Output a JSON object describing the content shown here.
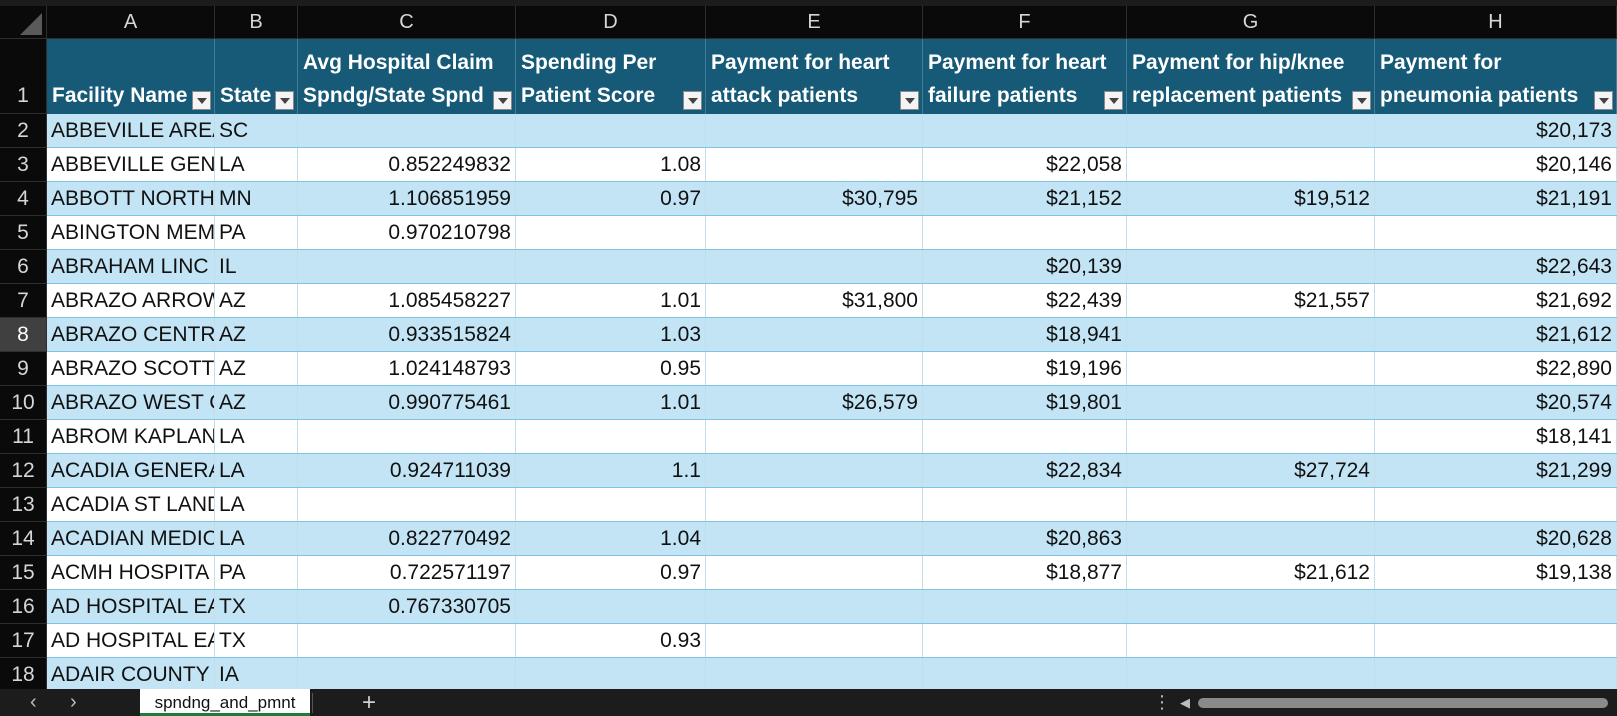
{
  "sheet": {
    "columns": [
      "A",
      "B",
      "C",
      "D",
      "E",
      "F",
      "G",
      "H"
    ],
    "header_row_number": "1",
    "headers": [
      "Facility Name",
      "State",
      "Avg Hospital Claim Spndg/State Spnd",
      "Spending Per Patient Score",
      "Payment for heart attack patients",
      "Payment for heart failure patients",
      "Payment for hip/knee replacement patients",
      "Payment for pneumonia patients"
    ],
    "header_lines": [
      [
        "",
        "Facility Name"
      ],
      [
        "",
        "State"
      ],
      [
        "Avg Hospital Claim",
        "Spndg/State Spnd"
      ],
      [
        "Spending Per",
        "Patient Score"
      ],
      [
        "Payment for heart",
        "attack patients"
      ],
      [
        "Payment for heart",
        "failure patients"
      ],
      [
        "Payment for hip/knee",
        "replacement patients"
      ],
      [
        "Payment for",
        "pneumonia patients"
      ]
    ],
    "rows": [
      {
        "num": "2",
        "cells": [
          "ABBEVILLE AREA",
          "SC",
          "",
          "",
          "",
          "",
          "",
          "$20,173"
        ]
      },
      {
        "num": "3",
        "cells": [
          "ABBEVILLE GEN",
          "LA",
          "0.852249832",
          "1.08",
          "",
          "$22,058",
          "",
          "$20,146"
        ]
      },
      {
        "num": "4",
        "cells": [
          "ABBOTT NORTH",
          "MN",
          "1.106851959",
          "0.97",
          "$30,795",
          "$21,152",
          "$19,512",
          "$21,191"
        ]
      },
      {
        "num": "5",
        "cells": [
          "ABINGTON MEM",
          "PA",
          "0.970210798",
          "",
          "",
          "",
          "",
          ""
        ]
      },
      {
        "num": "6",
        "cells": [
          "ABRAHAM LINC",
          "IL",
          "",
          "",
          "",
          "$20,139",
          "",
          "$22,643"
        ]
      },
      {
        "num": "7",
        "cells": [
          "ABRAZO ARROW",
          "AZ",
          "1.085458227",
          "1.01",
          "$31,800",
          "$22,439",
          "$21,557",
          "$21,692"
        ]
      },
      {
        "num": "8",
        "cells": [
          "ABRAZO CENTR",
          "AZ",
          "0.933515824",
          "1.03",
          "",
          "$18,941",
          "",
          "$21,612"
        ]
      },
      {
        "num": "9",
        "cells": [
          "ABRAZO SCOTTS",
          "AZ",
          "1.024148793",
          "0.95",
          "",
          "$19,196",
          "",
          "$22,890"
        ]
      },
      {
        "num": "10",
        "cells": [
          "ABRAZO WEST C",
          "AZ",
          "0.990775461",
          "1.01",
          "$26,579",
          "$19,801",
          "",
          "$20,574"
        ]
      },
      {
        "num": "11",
        "cells": [
          "ABROM KAPLAN",
          "LA",
          "",
          "",
          "",
          "",
          "",
          "$18,141"
        ]
      },
      {
        "num": "12",
        "cells": [
          "ACADIA GENERA",
          "LA",
          "0.924711039",
          "1.1",
          "",
          "$22,834",
          "$27,724",
          "$21,299"
        ]
      },
      {
        "num": "13",
        "cells": [
          "ACADIA ST LAND",
          "LA",
          "",
          "",
          "",
          "",
          "",
          ""
        ]
      },
      {
        "num": "14",
        "cells": [
          "ACADIAN MEDIC",
          "LA",
          "0.822770492",
          "1.04",
          "",
          "$20,863",
          "",
          "$20,628"
        ]
      },
      {
        "num": "15",
        "cells": [
          "ACMH HOSPITA",
          "PA",
          "0.722571197",
          "0.97",
          "",
          "$18,877",
          "$21,612",
          "$19,138"
        ]
      },
      {
        "num": "16",
        "cells": [
          "AD HOSPITAL EA",
          "TX",
          "0.767330705",
          "",
          "",
          "",
          "",
          ""
        ]
      },
      {
        "num": "17",
        "cells": [
          "AD HOSPITAL EA",
          "TX",
          "",
          "0.93",
          "",
          "",
          "",
          ""
        ]
      },
      {
        "num": "18",
        "cells": [
          "ADAIR COUNTY",
          "IA",
          "",
          "",
          "",
          "",
          "",
          ""
        ]
      }
    ],
    "selected_row": "8"
  },
  "tabs": {
    "active_sheet": "spndng_and_pmnt",
    "prev_icon": "chevron-left-icon",
    "next_icon": "chevron-right-icon",
    "add_label": "+",
    "more_label": "⋮"
  },
  "colors": {
    "header_fill": "#165a78",
    "band_fill": "#c2e4f5",
    "plain_fill": "#ffffff",
    "chrome_bg": "#0a0a0a"
  }
}
